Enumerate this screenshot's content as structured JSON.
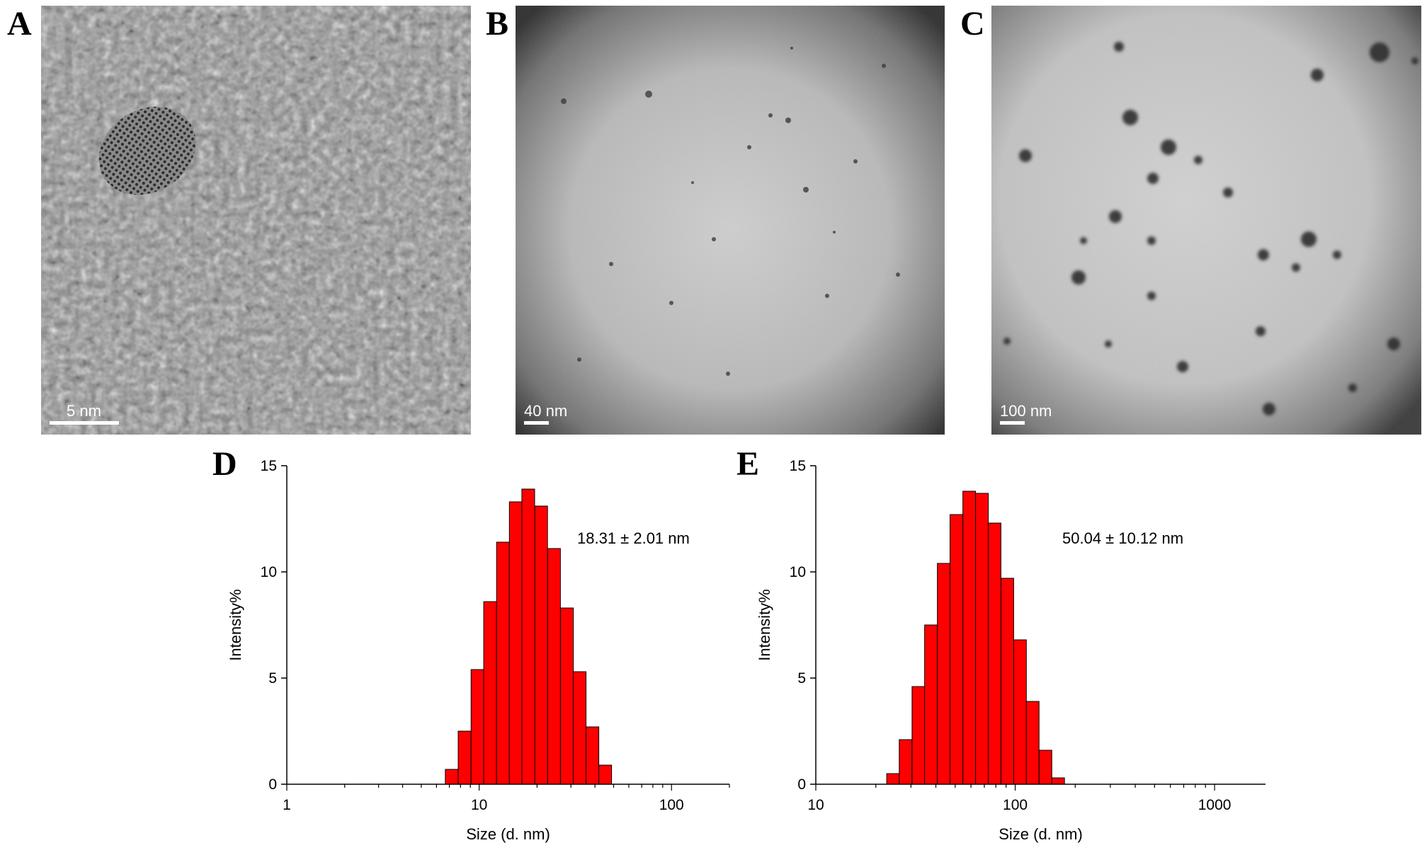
{
  "panels": [
    {
      "letter": "A",
      "type": "hrtem",
      "scale_bar": "5 nm"
    },
    {
      "letter": "B",
      "type": "tem",
      "scale_bar": "40 nm"
    },
    {
      "letter": "C",
      "type": "tem",
      "scale_bar": "100 nm"
    },
    {
      "letter": "D"
    },
    {
      "letter": "E"
    }
  ],
  "chart_data": [
    {
      "panel": "D",
      "type": "bar",
      "x_scale": "log",
      "xlabel": "Size (d. nm)",
      "ylabel": "Intensity%",
      "xlim": [
        1,
        200
      ],
      "ylim": [
        0,
        15
      ],
      "x_ticks": [
        "1",
        "10",
        "100"
      ],
      "y_ticks": [
        "0",
        "5",
        "10",
        "15"
      ],
      "annotation": "18.31 ± 2.01 nm",
      "bar_color": "#ff0000",
      "x": [
        7.2,
        8.4,
        9.8,
        11.4,
        13.3,
        15.5,
        18.0,
        21.0,
        24.5,
        28.6,
        33.3,
        38.8,
        45.2
      ],
      "values": [
        0.7,
        2.5,
        5.4,
        8.6,
        11.4,
        13.3,
        13.9,
        13.1,
        11.1,
        8.3,
        5.3,
        2.7,
        0.9
      ]
    },
    {
      "panel": "E",
      "type": "bar",
      "x_scale": "log",
      "xlabel": "Size (d. nm)",
      "ylabel": "Intensity%",
      "xlim": [
        10,
        1800
      ],
      "ylim": [
        0,
        15
      ],
      "x_ticks": [
        "10",
        "100",
        "1000"
      ],
      "y_ticks": [
        "0",
        "5",
        "10",
        "15"
      ],
      "annotation": "50.04 ± 10.12 nm",
      "bar_color": "#ff0000",
      "x": [
        24.4,
        28.2,
        32.7,
        37.8,
        43.8,
        50.7,
        58.8,
        68.1,
        78.8,
        91.3,
        105.7,
        122.4,
        141.8,
        164.2
      ],
      "values": [
        0.5,
        2.1,
        4.6,
        7.5,
        10.4,
        12.7,
        13.8,
        13.7,
        12.3,
        9.7,
        6.8,
        3.9,
        1.6,
        0.3
      ]
    }
  ]
}
